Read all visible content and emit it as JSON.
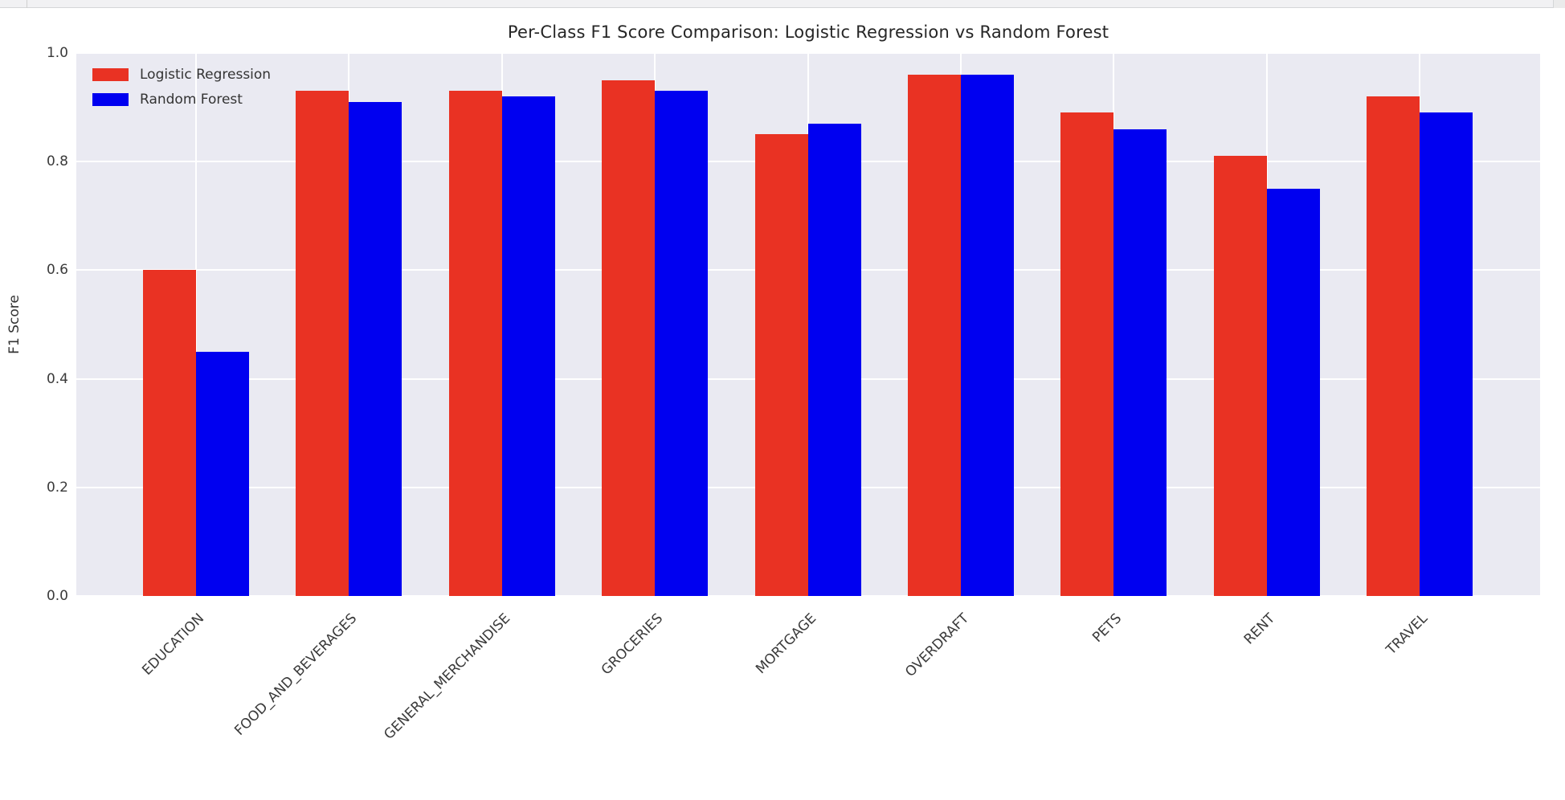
{
  "chart_data": {
    "type": "bar",
    "title": "Per-Class F1 Score Comparison: Logistic Regression vs Random Forest",
    "xlabel": "",
    "ylabel": "F1 Score",
    "categories": [
      "EDUCATION",
      "FOOD_AND_BEVERAGES",
      "GENERAL_MERCHANDISE",
      "GROCERIES",
      "MORTGAGE",
      "OVERDRAFT",
      "PETS",
      "RENT",
      "TRAVEL"
    ],
    "series": [
      {
        "name": "Logistic Regression",
        "color": "#e93223",
        "values": [
          0.6,
          0.93,
          0.93,
          0.95,
          0.85,
          0.96,
          0.89,
          0.81,
          0.92
        ]
      },
      {
        "name": "Random Forest",
        "color": "#0000f0",
        "values": [
          0.45,
          0.91,
          0.92,
          0.93,
          0.87,
          0.96,
          0.86,
          0.75,
          0.89
        ]
      }
    ],
    "ylim": [
      0.0,
      1.0
    ],
    "yticks": [
      "0.0",
      "0.2",
      "0.4",
      "0.6",
      "0.8",
      "1.0"
    ],
    "grid": true,
    "gridline_color": "#ffffff",
    "plot_background": "#eaeaf2",
    "legend_position": "upper-left",
    "x_tick_rotation_deg": 45
  }
}
